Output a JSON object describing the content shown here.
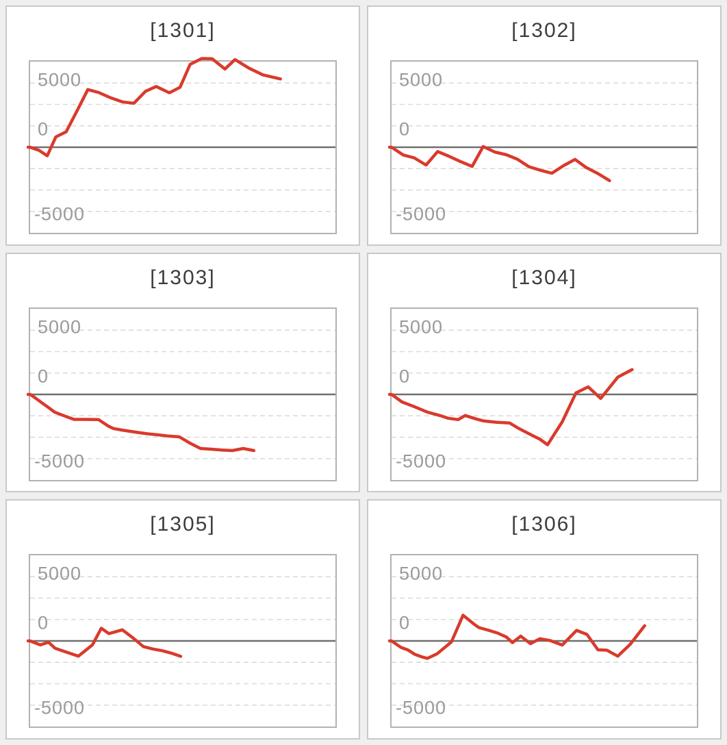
{
  "page": {
    "background_color": "#efefef",
    "panel_border_color": "#c9c9c9",
    "plot_border_color": "#b2b2b2",
    "grid_line_color": "#d9d9d9",
    "zero_line_color": "#6f6f6f",
    "title_color": "#3d3d3d",
    "tick_label_color": "#9a9a9a",
    "series_color": "#d93a2c"
  },
  "chart_data": [
    {
      "type": "line",
      "title": "[1301]",
      "y_tick_labels": [
        "5000",
        "0",
        "-5000"
      ],
      "ylim": [
        -5000,
        5000
      ],
      "grid": "horizontal dashed every 1250, solid dark line at 0",
      "legend": "none",
      "line_color": "#d93a2c",
      "points": [
        [
          0.0,
          0
        ],
        [
          0.029,
          -180
        ],
        [
          0.056,
          -500
        ],
        [
          0.084,
          600
        ],
        [
          0.118,
          900
        ],
        [
          0.153,
          2100
        ],
        [
          0.189,
          3370
        ],
        [
          0.224,
          3200
        ],
        [
          0.262,
          2900
        ],
        [
          0.302,
          2650
        ],
        [
          0.34,
          2570
        ],
        [
          0.378,
          3270
        ],
        [
          0.413,
          3550
        ],
        [
          0.456,
          3180
        ],
        [
          0.491,
          3500
        ],
        [
          0.524,
          4840
        ],
        [
          0.562,
          5180
        ],
        [
          0.596,
          5170
        ],
        [
          0.638,
          4570
        ],
        [
          0.671,
          5120
        ],
        [
          0.716,
          4630
        ],
        [
          0.762,
          4230
        ],
        [
          0.82,
          3990
        ]
      ]
    },
    {
      "type": "line",
      "title": "[1302]",
      "y_tick_labels": [
        "5000",
        "0",
        "-5000"
      ],
      "ylim": [
        -5000,
        5000
      ],
      "grid": "horizontal dashed every 1250, solid dark line at 0",
      "legend": "none",
      "line_color": "#d93a2c",
      "points": [
        [
          0.0,
          0
        ],
        [
          0.038,
          -450
        ],
        [
          0.074,
          -620
        ],
        [
          0.113,
          -1040
        ],
        [
          0.151,
          -250
        ],
        [
          0.187,
          -520
        ],
        [
          0.225,
          -830
        ],
        [
          0.264,
          -1120
        ],
        [
          0.3,
          40
        ],
        [
          0.338,
          -280
        ],
        [
          0.376,
          -440
        ],
        [
          0.412,
          -700
        ],
        [
          0.45,
          -1140
        ],
        [
          0.489,
          -1350
        ],
        [
          0.525,
          -1520
        ],
        [
          0.563,
          -1080
        ],
        [
          0.601,
          -710
        ],
        [
          0.637,
          -1180
        ],
        [
          0.676,
          -1540
        ],
        [
          0.714,
          -1950
        ]
      ]
    },
    {
      "type": "line",
      "title": "[1303]",
      "y_tick_labels": [
        "5000",
        "0",
        "-5000"
      ],
      "ylim": [
        -5000,
        5000
      ],
      "grid": "horizontal dashed every 1250, solid dark line at 0",
      "legend": "none",
      "line_color": "#d93a2c",
      "points": [
        [
          0.0,
          0
        ],
        [
          0.016,
          -190
        ],
        [
          0.036,
          -460
        ],
        [
          0.062,
          -790
        ],
        [
          0.08,
          -1030
        ],
        [
          0.1,
          -1170
        ],
        [
          0.124,
          -1330
        ],
        [
          0.144,
          -1460
        ],
        [
          0.184,
          -1460
        ],
        [
          0.224,
          -1470
        ],
        [
          0.256,
          -1850
        ],
        [
          0.273,
          -1990
        ],
        [
          0.3,
          -2080
        ],
        [
          0.344,
          -2200
        ],
        [
          0.384,
          -2300
        ],
        [
          0.418,
          -2360
        ],
        [
          0.453,
          -2430
        ],
        [
          0.489,
          -2480
        ],
        [
          0.524,
          -2850
        ],
        [
          0.558,
          -3160
        ],
        [
          0.593,
          -3200
        ],
        [
          0.629,
          -3250
        ],
        [
          0.662,
          -3280
        ],
        [
          0.698,
          -3160
        ],
        [
          0.733,
          -3280
        ]
      ]
    },
    {
      "type": "line",
      "title": "[1304]",
      "y_tick_labels": [
        "5000",
        "0",
        "-5000"
      ],
      "ylim": [
        -5000,
        5000
      ],
      "grid": "horizontal dashed every 1250, solid dark line at 0",
      "legend": "none",
      "line_color": "#d93a2c",
      "points": [
        [
          0.0,
          0
        ],
        [
          0.034,
          -440
        ],
        [
          0.074,
          -710
        ],
        [
          0.117,
          -1030
        ],
        [
          0.158,
          -1230
        ],
        [
          0.185,
          -1390
        ],
        [
          0.218,
          -1470
        ],
        [
          0.241,
          -1230
        ],
        [
          0.277,
          -1430
        ],
        [
          0.302,
          -1550
        ],
        [
          0.345,
          -1630
        ],
        [
          0.387,
          -1670
        ],
        [
          0.417,
          -1990
        ],
        [
          0.455,
          -2340
        ],
        [
          0.486,
          -2620
        ],
        [
          0.511,
          -2940
        ],
        [
          0.559,
          -1600
        ],
        [
          0.604,
          90
        ],
        [
          0.644,
          440
        ],
        [
          0.685,
          -230
        ],
        [
          0.741,
          1010
        ],
        [
          0.788,
          1450
        ]
      ]
    },
    {
      "type": "line",
      "title": "[1305]",
      "y_tick_labels": [
        "5000",
        "0",
        "-5000"
      ],
      "ylim": [
        -5000,
        5000
      ],
      "grid": "horizontal dashed every 1250, solid dark line at 0",
      "legend": "none",
      "line_color": "#d93a2c",
      "points": [
        [
          0.0,
          0
        ],
        [
          0.033,
          -230
        ],
        [
          0.06,
          -80
        ],
        [
          0.082,
          -430
        ],
        [
          0.113,
          -620
        ],
        [
          0.158,
          -890
        ],
        [
          0.204,
          -230
        ],
        [
          0.233,
          740
        ],
        [
          0.258,
          430
        ],
        [
          0.302,
          650
        ],
        [
          0.336,
          190
        ],
        [
          0.371,
          -330
        ],
        [
          0.402,
          -470
        ],
        [
          0.433,
          -570
        ],
        [
          0.462,
          -710
        ],
        [
          0.493,
          -900
        ]
      ]
    },
    {
      "type": "line",
      "title": "[1306]",
      "y_tick_labels": [
        "5000",
        "0",
        "-5000"
      ],
      "ylim": [
        -5000,
        5000
      ],
      "grid": "horizontal dashed every 1250, solid dark line at 0",
      "legend": "none",
      "line_color": "#d93a2c",
      "points": [
        [
          0.0,
          0
        ],
        [
          0.032,
          -390
        ],
        [
          0.054,
          -530
        ],
        [
          0.077,
          -790
        ],
        [
          0.099,
          -930
        ],
        [
          0.117,
          -1020
        ],
        [
          0.149,
          -750
        ],
        [
          0.196,
          -60
        ],
        [
          0.234,
          1500
        ],
        [
          0.273,
          940
        ],
        [
          0.286,
          780
        ],
        [
          0.318,
          620
        ],
        [
          0.347,
          460
        ],
        [
          0.376,
          230
        ],
        [
          0.396,
          -100
        ],
        [
          0.423,
          280
        ],
        [
          0.455,
          -160
        ],
        [
          0.486,
          130
        ],
        [
          0.518,
          30
        ],
        [
          0.559,
          -240
        ],
        [
          0.606,
          615
        ],
        [
          0.64,
          380
        ],
        [
          0.676,
          -520
        ],
        [
          0.705,
          -540
        ],
        [
          0.741,
          -890
        ],
        [
          0.782,
          -190
        ],
        [
          0.829,
          890
        ]
      ]
    }
  ]
}
